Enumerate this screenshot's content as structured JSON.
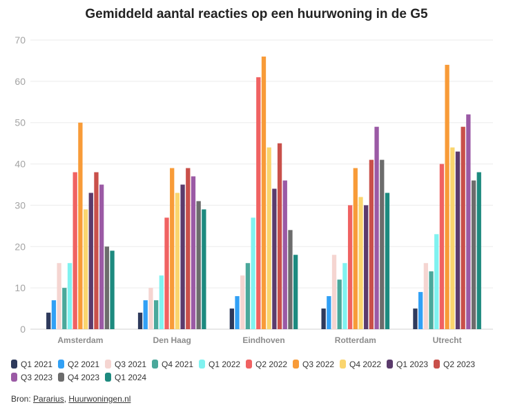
{
  "chart_data": {
    "type": "bar",
    "title": "Gemiddeld aantal reacties op een huurwoning in de G5",
    "categories": [
      "Amsterdam",
      "Den Haag",
      "Eindhoven",
      "Rotterdam",
      "Utrecht"
    ],
    "ylim": [
      0,
      70
    ],
    "yticks": [
      0,
      10,
      20,
      30,
      40,
      50,
      60,
      70
    ],
    "grid": true,
    "legend_position": "bottom-left",
    "series": [
      {
        "name": "Q1 2021",
        "color": "#2e3a5c",
        "values": [
          4,
          4,
          5,
          5,
          5
        ]
      },
      {
        "name": "Q2 2021",
        "color": "#31a0f5",
        "values": [
          7,
          7,
          8,
          8,
          9
        ]
      },
      {
        "name": "Q3 2021",
        "color": "#f5d5d1",
        "values": [
          16,
          10,
          13,
          18,
          16
        ]
      },
      {
        "name": "Q4 2021",
        "color": "#4aa89b",
        "values": [
          10,
          7,
          16,
          12,
          14
        ]
      },
      {
        "name": "Q1 2022",
        "color": "#80f2f0",
        "values": [
          16,
          13,
          27,
          16,
          23
        ]
      },
      {
        "name": "Q2 2022",
        "color": "#f06262",
        "values": [
          38,
          27,
          61,
          30,
          40
        ]
      },
      {
        "name": "Q3 2022",
        "color": "#f89b38",
        "values": [
          50,
          39,
          66,
          39,
          64
        ]
      },
      {
        "name": "Q4 2022",
        "color": "#fad56e",
        "values": [
          29,
          33,
          44,
          32,
          44
        ]
      },
      {
        "name": "Q1 2023",
        "color": "#5b3b6c",
        "values": [
          33,
          35,
          34,
          30,
          43
        ]
      },
      {
        "name": "Q2 2023",
        "color": "#c9504a",
        "values": [
          38,
          39,
          45,
          41,
          49
        ]
      },
      {
        "name": "Q3 2023",
        "color": "#9b5aa5",
        "values": [
          35,
          37,
          36,
          49,
          52
        ]
      },
      {
        "name": "Q4 2023",
        "color": "#6c6c6c",
        "values": [
          20,
          31,
          24,
          41,
          36
        ]
      },
      {
        "name": "Q1 2024",
        "color": "#1d8a7f",
        "values": [
          19,
          29,
          18,
          33,
          38
        ]
      }
    ]
  },
  "source": {
    "prefix": "Bron:",
    "separator": ", ",
    "links": [
      "Pararius",
      "Huurwoningen.nl"
    ]
  }
}
